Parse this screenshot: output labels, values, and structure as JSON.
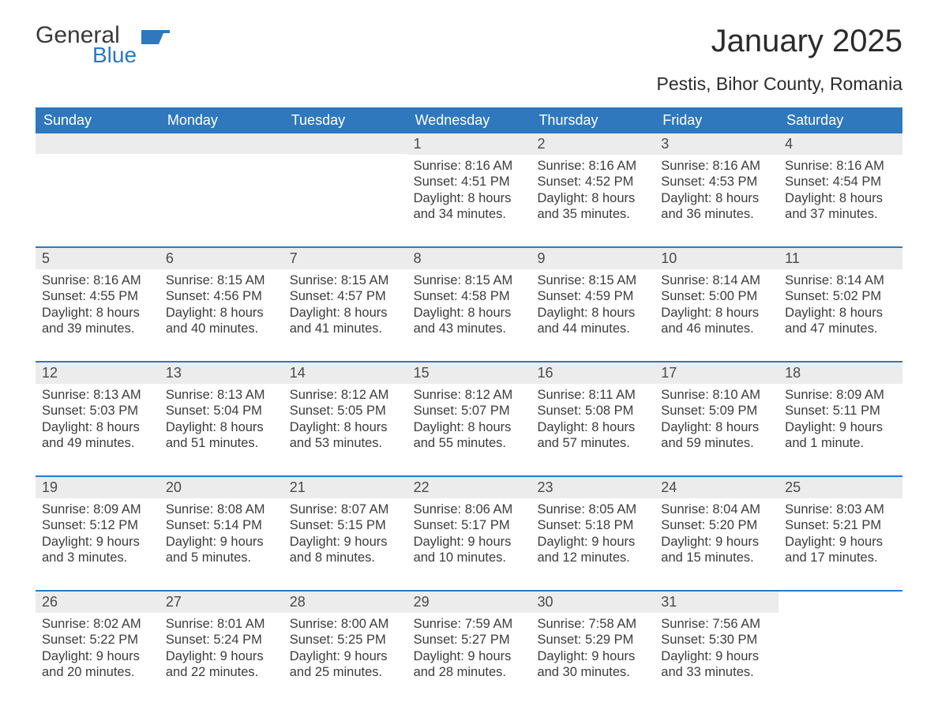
{
  "logo": {
    "word1": "General",
    "word2": "Blue"
  },
  "title": "January 2025",
  "location": "Pestis, Bihor County, Romania",
  "colors": {
    "header_bg": "#2f78bd",
    "header_text": "#ffffff",
    "strip_bg": "#ececec",
    "body_text": "#3c3c3c",
    "rule": "#2f78bd",
    "logo_blue": "#2f78bd",
    "page_bg": "#ffffff"
  },
  "typography": {
    "title_fontsize": 40,
    "location_fontsize": 23,
    "dow_fontsize": 18,
    "daynum_fontsize": 18,
    "body_fontsize": 16.5,
    "font_family": "Arial"
  },
  "day_names": [
    "Sunday",
    "Monday",
    "Tuesday",
    "Wednesday",
    "Thursday",
    "Friday",
    "Saturday"
  ],
  "weeks": [
    [
      {
        "empty": true
      },
      {
        "empty": true
      },
      {
        "empty": true
      },
      {
        "n": "1",
        "sunrise": "Sunrise: 8:16 AM",
        "sunset": "Sunset: 4:51 PM",
        "dl1": "Daylight: 8 hours",
        "dl2": "and 34 minutes."
      },
      {
        "n": "2",
        "sunrise": "Sunrise: 8:16 AM",
        "sunset": "Sunset: 4:52 PM",
        "dl1": "Daylight: 8 hours",
        "dl2": "and 35 minutes."
      },
      {
        "n": "3",
        "sunrise": "Sunrise: 8:16 AM",
        "sunset": "Sunset: 4:53 PM",
        "dl1": "Daylight: 8 hours",
        "dl2": "and 36 minutes."
      },
      {
        "n": "4",
        "sunrise": "Sunrise: 8:16 AM",
        "sunset": "Sunset: 4:54 PM",
        "dl1": "Daylight: 8 hours",
        "dl2": "and 37 minutes."
      }
    ],
    [
      {
        "n": "5",
        "sunrise": "Sunrise: 8:16 AM",
        "sunset": "Sunset: 4:55 PM",
        "dl1": "Daylight: 8 hours",
        "dl2": "and 39 minutes."
      },
      {
        "n": "6",
        "sunrise": "Sunrise: 8:15 AM",
        "sunset": "Sunset: 4:56 PM",
        "dl1": "Daylight: 8 hours",
        "dl2": "and 40 minutes."
      },
      {
        "n": "7",
        "sunrise": "Sunrise: 8:15 AM",
        "sunset": "Sunset: 4:57 PM",
        "dl1": "Daylight: 8 hours",
        "dl2": "and 41 minutes."
      },
      {
        "n": "8",
        "sunrise": "Sunrise: 8:15 AM",
        "sunset": "Sunset: 4:58 PM",
        "dl1": "Daylight: 8 hours",
        "dl2": "and 43 minutes."
      },
      {
        "n": "9",
        "sunrise": "Sunrise: 8:15 AM",
        "sunset": "Sunset: 4:59 PM",
        "dl1": "Daylight: 8 hours",
        "dl2": "and 44 minutes."
      },
      {
        "n": "10",
        "sunrise": "Sunrise: 8:14 AM",
        "sunset": "Sunset: 5:00 PM",
        "dl1": "Daylight: 8 hours",
        "dl2": "and 46 minutes."
      },
      {
        "n": "11",
        "sunrise": "Sunrise: 8:14 AM",
        "sunset": "Sunset: 5:02 PM",
        "dl1": "Daylight: 8 hours",
        "dl2": "and 47 minutes."
      }
    ],
    [
      {
        "n": "12",
        "sunrise": "Sunrise: 8:13 AM",
        "sunset": "Sunset: 5:03 PM",
        "dl1": "Daylight: 8 hours",
        "dl2": "and 49 minutes."
      },
      {
        "n": "13",
        "sunrise": "Sunrise: 8:13 AM",
        "sunset": "Sunset: 5:04 PM",
        "dl1": "Daylight: 8 hours",
        "dl2": "and 51 minutes."
      },
      {
        "n": "14",
        "sunrise": "Sunrise: 8:12 AM",
        "sunset": "Sunset: 5:05 PM",
        "dl1": "Daylight: 8 hours",
        "dl2": "and 53 minutes."
      },
      {
        "n": "15",
        "sunrise": "Sunrise: 8:12 AM",
        "sunset": "Sunset: 5:07 PM",
        "dl1": "Daylight: 8 hours",
        "dl2": "and 55 minutes."
      },
      {
        "n": "16",
        "sunrise": "Sunrise: 8:11 AM",
        "sunset": "Sunset: 5:08 PM",
        "dl1": "Daylight: 8 hours",
        "dl2": "and 57 minutes."
      },
      {
        "n": "17",
        "sunrise": "Sunrise: 8:10 AM",
        "sunset": "Sunset: 5:09 PM",
        "dl1": "Daylight: 8 hours",
        "dl2": "and 59 minutes."
      },
      {
        "n": "18",
        "sunrise": "Sunrise: 8:09 AM",
        "sunset": "Sunset: 5:11 PM",
        "dl1": "Daylight: 9 hours",
        "dl2": "and 1 minute."
      }
    ],
    [
      {
        "n": "19",
        "sunrise": "Sunrise: 8:09 AM",
        "sunset": "Sunset: 5:12 PM",
        "dl1": "Daylight: 9 hours",
        "dl2": "and 3 minutes."
      },
      {
        "n": "20",
        "sunrise": "Sunrise: 8:08 AM",
        "sunset": "Sunset: 5:14 PM",
        "dl1": "Daylight: 9 hours",
        "dl2": "and 5 minutes."
      },
      {
        "n": "21",
        "sunrise": "Sunrise: 8:07 AM",
        "sunset": "Sunset: 5:15 PM",
        "dl1": "Daylight: 9 hours",
        "dl2": "and 8 minutes."
      },
      {
        "n": "22",
        "sunrise": "Sunrise: 8:06 AM",
        "sunset": "Sunset: 5:17 PM",
        "dl1": "Daylight: 9 hours",
        "dl2": "and 10 minutes."
      },
      {
        "n": "23",
        "sunrise": "Sunrise: 8:05 AM",
        "sunset": "Sunset: 5:18 PM",
        "dl1": "Daylight: 9 hours",
        "dl2": "and 12 minutes."
      },
      {
        "n": "24",
        "sunrise": "Sunrise: 8:04 AM",
        "sunset": "Sunset: 5:20 PM",
        "dl1": "Daylight: 9 hours",
        "dl2": "and 15 minutes."
      },
      {
        "n": "25",
        "sunrise": "Sunrise: 8:03 AM",
        "sunset": "Sunset: 5:21 PM",
        "dl1": "Daylight: 9 hours",
        "dl2": "and 17 minutes."
      }
    ],
    [
      {
        "n": "26",
        "sunrise": "Sunrise: 8:02 AM",
        "sunset": "Sunset: 5:22 PM",
        "dl1": "Daylight: 9 hours",
        "dl2": "and 20 minutes."
      },
      {
        "n": "27",
        "sunrise": "Sunrise: 8:01 AM",
        "sunset": "Sunset: 5:24 PM",
        "dl1": "Daylight: 9 hours",
        "dl2": "and 22 minutes."
      },
      {
        "n": "28",
        "sunrise": "Sunrise: 8:00 AM",
        "sunset": "Sunset: 5:25 PM",
        "dl1": "Daylight: 9 hours",
        "dl2": "and 25 minutes."
      },
      {
        "n": "29",
        "sunrise": "Sunrise: 7:59 AM",
        "sunset": "Sunset: 5:27 PM",
        "dl1": "Daylight: 9 hours",
        "dl2": "and 28 minutes."
      },
      {
        "n": "30",
        "sunrise": "Sunrise: 7:58 AM",
        "sunset": "Sunset: 5:29 PM",
        "dl1": "Daylight: 9 hours",
        "dl2": "and 30 minutes."
      },
      {
        "n": "31",
        "sunrise": "Sunrise: 7:56 AM",
        "sunset": "Sunset: 5:30 PM",
        "dl1": "Daylight: 9 hours",
        "dl2": "and 33 minutes."
      },
      {
        "empty": true,
        "nostrip": true
      }
    ]
  ]
}
